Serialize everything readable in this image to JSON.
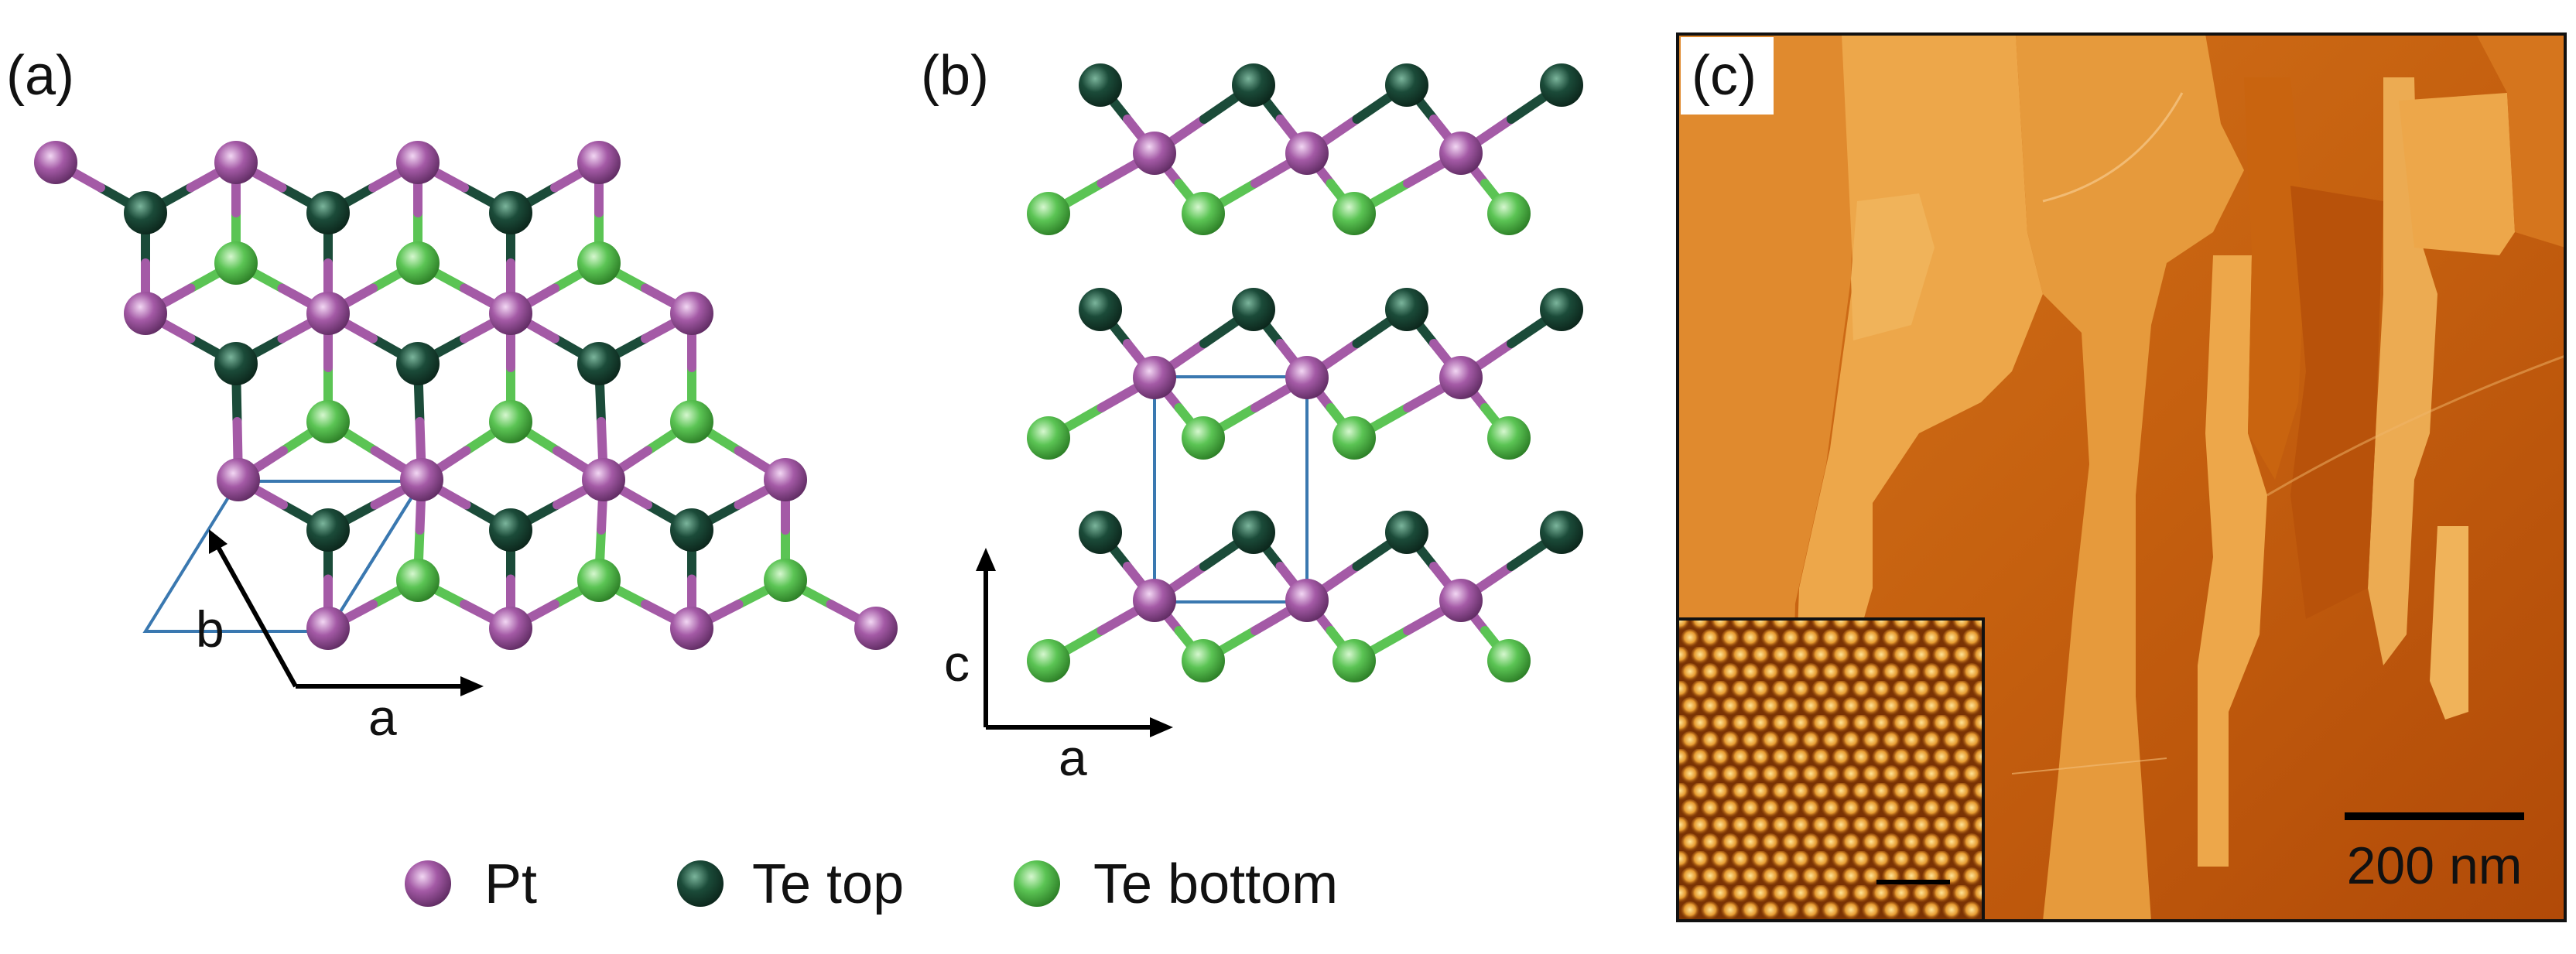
{
  "panels": {
    "a": {
      "letter": "(a)",
      "axis_a": "a",
      "axis_b": "b"
    },
    "b": {
      "letter": "(b)",
      "axis_a": "a",
      "axis_c": "c"
    },
    "c": {
      "letter": "(c)",
      "scale_bar": "200 nm"
    }
  },
  "legend": [
    {
      "label": "Pt",
      "color": "#a45aa6"
    },
    {
      "label": "Te top",
      "color": "#1b4b39"
    },
    {
      "label": "Te bottom",
      "color": "#5bc454"
    }
  ],
  "colors": {
    "pt": "#a45aa6",
    "te_top": "#1b4b39",
    "te_bottom": "#5bc454",
    "unit_cell": "#3a78b0",
    "afm_dark": "#b24a0a",
    "afm_light": "#efb255"
  }
}
